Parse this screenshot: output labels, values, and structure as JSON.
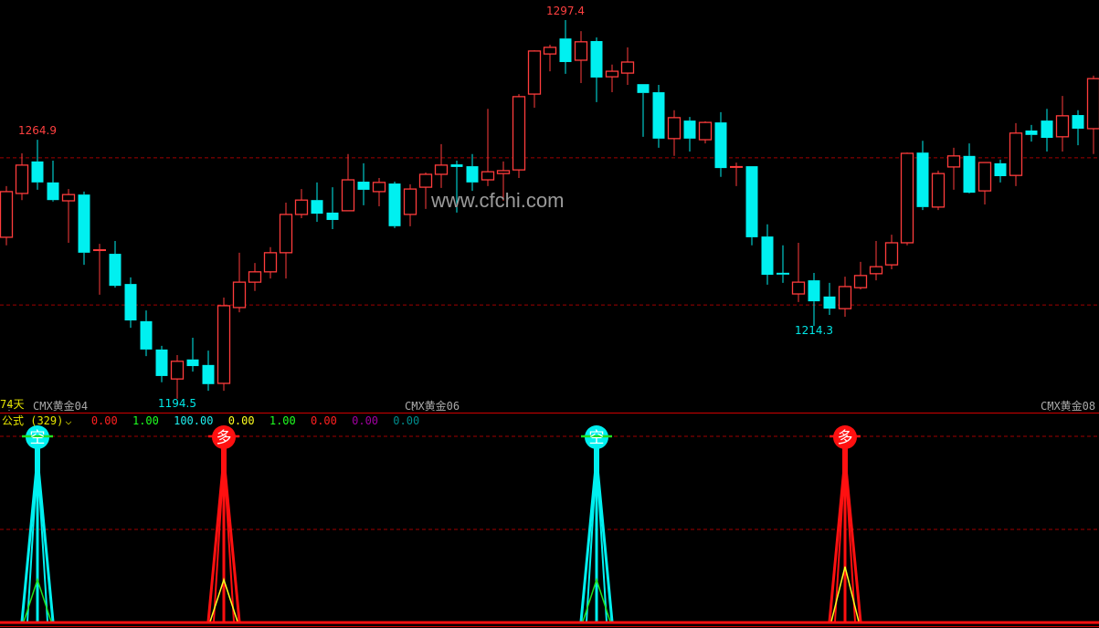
{
  "colors": {
    "up": "#ff3c3c",
    "down": "#00f0f0",
    "grid": "#a00000",
    "axis": "#d00000"
  },
  "watermark": "www.cfchi.com",
  "period_label": "74天",
  "contracts": [
    "CMX黄金04",
    "CMX黄金06",
    "CMX黄金08"
  ],
  "indicator_header": {
    "name": "公式 (329)",
    "dropdown_icon": "chevron-down-icon",
    "values": [
      {
        "text": "0.00",
        "color": "#ff2020"
      },
      {
        "text": "1.00",
        "color": "#20ff20"
      },
      {
        "text": "100.00",
        "color": "#20f0f0"
      },
      {
        "text": "0.00",
        "color": "#ffff20"
      },
      {
        "text": "1.00",
        "color": "#20ff20"
      },
      {
        "text": "0.00",
        "color": "#ff2020"
      },
      {
        "text": "0.00",
        "color": "#a000a0"
      },
      {
        "text": "0.00",
        "color": "#008c8c"
      }
    ]
  },
  "chart_data": [
    {
      "type": "candlestick",
      "fields": [
        "open",
        "high",
        "low",
        "close"
      ],
      "candles": [
        [
          1238.4,
          1252.3,
          1236.2,
          1250.8
        ],
        [
          1250.3,
          1261.2,
          1248.5,
          1258.0
        ],
        [
          1259.0,
          1264.9,
          1251.3,
          1253.3
        ],
        [
          1253.3,
          1259.2,
          1248.1,
          1248.5
        ],
        [
          1248.3,
          1251.5,
          1236.9,
          1250.0
        ],
        [
          1250.0,
          1250.8,
          1230.9,
          1234.2
        ],
        [
          1234.9,
          1236.6,
          1222.8,
          1234.9
        ],
        [
          1233.9,
          1237.4,
          1224.7,
          1225.2
        ],
        [
          1225.7,
          1227.5,
          1213.8,
          1215.8
        ],
        [
          1215.6,
          1218.5,
          1206.1,
          1207.9
        ],
        [
          1207.9,
          1208.9,
          1199.0,
          1200.7
        ],
        [
          1199.9,
          1206.4,
          1194.5,
          1204.7
        ],
        [
          1205.2,
          1211.1,
          1201.9,
          1203.4
        ],
        [
          1203.7,
          1207.6,
          1196.7,
          1198.5
        ],
        [
          1198.7,
          1222.0,
          1196.7,
          1219.8
        ],
        [
          1219.3,
          1234.2,
          1218.0,
          1226.2
        ],
        [
          1226.2,
          1231.4,
          1223.8,
          1229.0
        ],
        [
          1229.0,
          1235.7,
          1227.2,
          1234.2
        ],
        [
          1234.2,
          1247.8,
          1227.2,
          1244.6
        ],
        [
          1244.6,
          1251.5,
          1243.6,
          1248.5
        ],
        [
          1248.5,
          1253.3,
          1242.6,
          1244.8
        ],
        [
          1245.1,
          1252.0,
          1240.6,
          1243.1
        ],
        [
          1245.6,
          1261.0,
          1245.6,
          1254.0
        ],
        [
          1253.5,
          1258.5,
          1247.1,
          1251.3
        ],
        [
          1250.8,
          1254.5,
          1246.8,
          1253.3
        ],
        [
          1253.0,
          1253.5,
          1240.9,
          1241.4
        ],
        [
          1244.6,
          1252.8,
          1241.4,
          1251.5
        ],
        [
          1252.0,
          1256.0,
          1246.1,
          1255.5
        ],
        [
          1255.5,
          1263.7,
          1251.8,
          1258.0
        ],
        [
          1258.2,
          1259.2,
          1245.1,
          1257.5
        ],
        [
          1257.7,
          1261.0,
          1251.0,
          1253.3
        ],
        [
          1254.0,
          1273.3,
          1252.3,
          1256.2
        ],
        [
          1255.7,
          1259.0,
          1248.3,
          1256.5
        ],
        [
          1256.7,
          1277.3,
          1254.5,
          1276.6
        ],
        [
          1277.3,
          1289.2,
          1273.6,
          1289.0
        ],
        [
          1288.2,
          1290.7,
          1283.5,
          1290.0
        ],
        [
          1292.4,
          1297.4,
          1282.8,
          1286.0
        ],
        [
          1286.5,
          1294.4,
          1280.3,
          1291.5
        ],
        [
          1291.7,
          1292.7,
          1275.1,
          1281.8
        ],
        [
          1282.0,
          1285.3,
          1277.8,
          1283.5
        ],
        [
          1283.0,
          1290.0,
          1279.8,
          1286.0
        ],
        [
          1280.0,
          1280.0,
          1265.7,
          1277.6
        ],
        [
          1277.8,
          1279.8,
          1262.7,
          1265.2
        ],
        [
          1265.2,
          1272.9,
          1260.5,
          1270.9
        ],
        [
          1270.1,
          1271.1,
          1261.7,
          1265.2
        ],
        [
          1264.9,
          1269.9,
          1263.9,
          1269.6
        ],
        [
          1269.6,
          1272.4,
          1254.8,
          1257.2
        ],
        [
          1257.5,
          1258.7,
          1252.3,
          1257.5
        ],
        [
          1257.7,
          1257.7,
          1236.2,
          1238.4
        ],
        [
          1238.6,
          1241.9,
          1225.5,
          1228.2
        ],
        [
          1228.5,
          1236.2,
          1226.0,
          1228.2
        ],
        [
          1223.0,
          1236.9,
          1220.8,
          1226.2
        ],
        [
          1226.7,
          1228.7,
          1214.3,
          1221.0
        ],
        [
          1222.3,
          1226.0,
          1217.3,
          1219.0
        ],
        [
          1219.0,
          1227.7,
          1216.8,
          1225.0
        ],
        [
          1224.7,
          1231.7,
          1224.2,
          1228.0
        ],
        [
          1228.5,
          1237.4,
          1226.7,
          1230.4
        ],
        [
          1230.9,
          1239.1,
          1229.7,
          1236.9
        ],
        [
          1236.9,
          1261.4,
          1236.2,
          1261.2
        ],
        [
          1261.4,
          1264.6,
          1245.8,
          1246.6
        ],
        [
          1246.6,
          1256.5,
          1245.8,
          1255.7
        ],
        [
          1257.5,
          1262.7,
          1251.3,
          1260.5
        ],
        [
          1260.5,
          1263.9,
          1250.3,
          1250.5
        ],
        [
          1251.0,
          1258.7,
          1247.3,
          1258.7
        ],
        [
          1258.5,
          1259.5,
          1253.3,
          1255.0
        ],
        [
          1255.2,
          1269.4,
          1252.3,
          1266.7
        ],
        [
          1267.4,
          1268.9,
          1264.4,
          1266.2
        ],
        [
          1270.1,
          1273.3,
          1261.7,
          1265.4
        ],
        [
          1265.7,
          1276.8,
          1261.7,
          1271.4
        ],
        [
          1271.6,
          1272.9,
          1263.4,
          1267.9
        ],
        [
          1267.9,
          1282.3,
          1261.0,
          1281.5
        ]
      ],
      "reference_lines": [
        1260,
        1220
      ],
      "price_labels": [
        {
          "index": 2,
          "text": "1264.9",
          "kind": "high"
        },
        {
          "index": 11,
          "text": "1194.5",
          "kind": "low"
        },
        {
          "index": 36,
          "text": "1297.4",
          "kind": "high"
        },
        {
          "index": 52,
          "text": "1214.3",
          "kind": "low"
        }
      ],
      "contract_boundaries": [
        0,
        26,
        67
      ]
    },
    {
      "type": "signal",
      "ylim": [
        0,
        100
      ],
      "reference_lines": [
        100,
        50
      ],
      "signals": [
        {
          "index": 2,
          "label": "空",
          "value": 100,
          "inner_value": 23,
          "color": "#00f0f0",
          "inner_color": "#20e020",
          "marker_color": "#20e020"
        },
        {
          "index": 14,
          "label": "多",
          "value": 100,
          "inner_value": 23,
          "color": "#ff1010",
          "inner_color": "#ffff20",
          "marker_color": "#ff1010"
        },
        {
          "index": 38,
          "label": "空",
          "value": 100,
          "inner_value": 23,
          "color": "#00f0f0",
          "inner_color": "#20e020",
          "marker_color": "#20e020"
        },
        {
          "index": 54,
          "label": "多",
          "value": 100,
          "inner_value": 30,
          "color": "#ff1010",
          "inner_color": "#ffff20",
          "marker_color": "#ff1010"
        }
      ]
    }
  ]
}
